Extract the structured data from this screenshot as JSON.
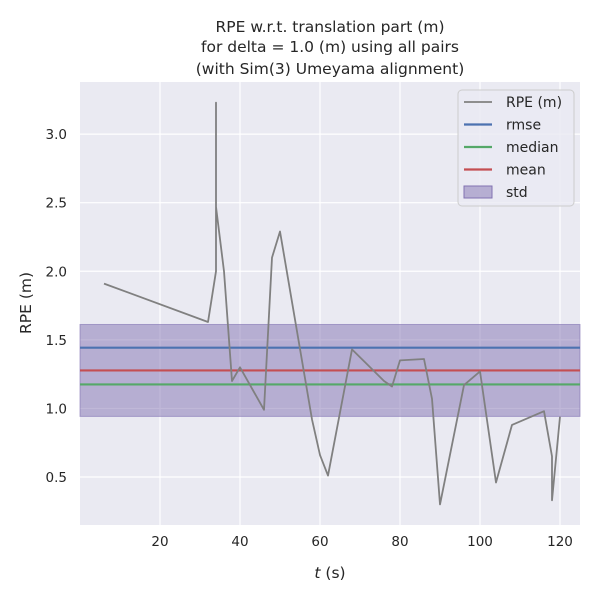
{
  "chart_data": {
    "type": "line",
    "title_lines": [
      "RPE w.r.t. translation part (m)",
      "for delta = 1.0 (m) using all pairs",
      "(with Sim(3) Umeyama alignment)"
    ],
    "xlabel_var": "t",
    "xlabel_unit": " (s)",
    "ylabel": "RPE (m)",
    "xlim": [
      0,
      125
    ],
    "ylim": [
      0.15,
      3.38
    ],
    "xticks": [
      20,
      40,
      60,
      80,
      100,
      120
    ],
    "yticks": [
      0.5,
      1.0,
      1.5,
      2.0,
      2.5,
      3.0
    ],
    "grid": true,
    "legend_position": "top-right",
    "series": [
      {
        "name": "RPE (m)",
        "color": "#808080",
        "x": [
          6,
          32,
          34,
          34,
          34,
          36,
          38,
          40,
          46,
          48,
          50,
          58,
          60,
          62,
          68,
          76,
          78,
          80,
          86,
          88,
          90,
          96,
          100,
          104,
          108,
          116,
          118,
          118,
          120
        ],
        "y": [
          1.91,
          1.63,
          2.0,
          3.23,
          2.47,
          2.0,
          1.2,
          1.3,
          0.99,
          2.1,
          2.29,
          0.92,
          0.66,
          0.51,
          1.43,
          1.2,
          1.16,
          1.35,
          1.36,
          1.07,
          0.3,
          1.17,
          1.27,
          0.46,
          0.88,
          0.98,
          0.65,
          0.33,
          0.94
        ]
      }
    ],
    "stats": {
      "rmse": 1.443,
      "median": 1.175,
      "mean": 1.277,
      "std_low": 0.942,
      "std_high": 1.612
    },
    "legend": [
      {
        "label": "RPE (m)",
        "kind": "line",
        "color": "#808080"
      },
      {
        "label": "rmse",
        "kind": "line",
        "color": "#4c72b0"
      },
      {
        "label": "median",
        "kind": "line",
        "color": "#55a868"
      },
      {
        "label": "mean",
        "kind": "line",
        "color": "#c44e52"
      },
      {
        "label": "std",
        "kind": "patch",
        "color": "#8172b2"
      }
    ],
    "colors": {
      "plot_bg": "#eaeaf2",
      "grid": "#ffffff",
      "rmse": "#4c72b0",
      "median": "#55a868",
      "mean": "#c44e52",
      "std": "#8172b2",
      "rpe": "#808080"
    }
  }
}
